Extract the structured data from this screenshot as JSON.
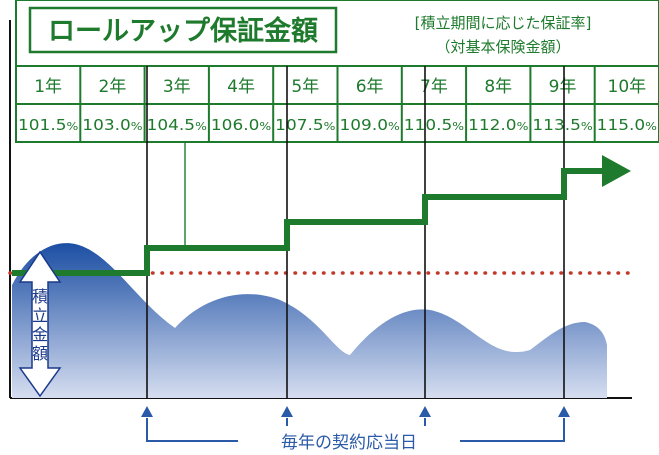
{
  "header": {
    "title": "ロールアップ保証金額",
    "subtitle_line1": "[積立期間に応じた保証率]",
    "subtitle_line2": "（対基本保険金額）"
  },
  "table": {
    "years": [
      "1年",
      "2年",
      "3年",
      "4年",
      "5年",
      "6年",
      "7年",
      "8年",
      "9年",
      "10年"
    ],
    "rates": [
      {
        "num": "101.5",
        "unit": "%"
      },
      {
        "num": "103.0",
        "unit": "%"
      },
      {
        "num": "104.5",
        "unit": "%"
      },
      {
        "num": "106.0",
        "unit": "%"
      },
      {
        "num": "107.5",
        "unit": "%"
      },
      {
        "num": "109.0",
        "unit": "%"
      },
      {
        "num": "110.5",
        "unit": "%"
      },
      {
        "num": "112.0",
        "unit": "%"
      },
      {
        "num": "113.5",
        "unit": "%"
      },
      {
        "num": "115.0",
        "unit": "%"
      }
    ]
  },
  "left_label": "積立金額",
  "footer_label": "毎年の契約応当日",
  "colors": {
    "green": "#1e7a2c",
    "blue": "#2a5aa8",
    "dark_blue": "#1b3a8a",
    "dotted_red": "#c0392b"
  }
}
